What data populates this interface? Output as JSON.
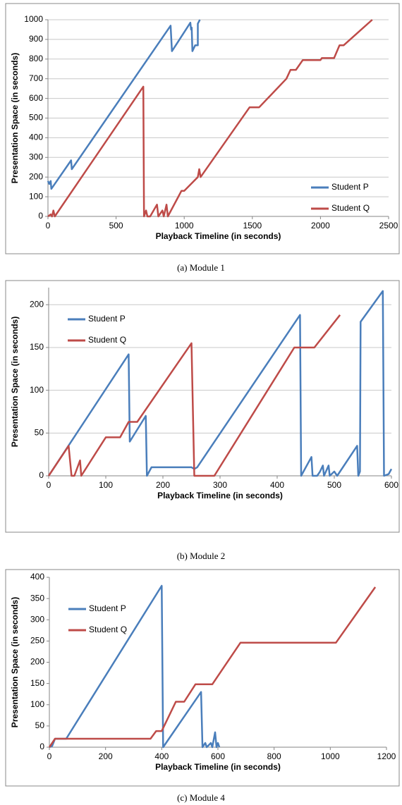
{
  "chart_data": [
    {
      "type": "line",
      "caption": "(a)  Module 1",
      "x_label": "Playback Timeline (in seconds)",
      "y_label": "Presentation Space (in seconds)",
      "xlim": [
        0,
        2500
      ],
      "xticks": [
        0,
        500,
        1000,
        1500,
        2000,
        2500
      ],
      "ylim": [
        0,
        1000
      ],
      "yticks": [
        0,
        100,
        200,
        300,
        400,
        500,
        600,
        700,
        800,
        900,
        1000
      ],
      "grid": true,
      "legend": "lower right",
      "series": [
        {
          "name": "Student P",
          "color": "#4a7ebb",
          "x": [
            0,
            10,
            20,
            25,
            170,
            175,
            900,
            910,
            1045,
            1050,
            1055,
            1060,
            1080,
            1100,
            1100,
            1115
          ],
          "values": [
            180,
            165,
            180,
            140,
            285,
            240,
            970,
            840,
            985,
            950,
            960,
            840,
            870,
            870,
            980,
            1000
          ]
        },
        {
          "name": "Student Q",
          "color": "#be4b48",
          "x": [
            0,
            20,
            30,
            40,
            50,
            700,
            705,
            720,
            730,
            750,
            800,
            810,
            840,
            850,
            870,
            880,
            980,
            1000,
            1100,
            1110,
            1120,
            1480,
            1550,
            1750,
            1780,
            1820,
            1870,
            2000,
            2010,
            2100,
            2140,
            2170,
            2380
          ],
          "values": [
            0,
            10,
            0,
            30,
            0,
            660,
            0,
            30,
            0,
            0,
            60,
            0,
            30,
            0,
            60,
            0,
            130,
            130,
            200,
            240,
            200,
            555,
            555,
            700,
            745,
            745,
            795,
            795,
            805,
            805,
            870,
            870,
            1000
          ]
        }
      ]
    },
    {
      "type": "line",
      "caption": "(b)  Module 2",
      "x_label": "Playback Timeline (in seconds)",
      "y_label": "Presentation Space (in seconds)",
      "xlim": [
        0,
        600
      ],
      "xticks": [
        0,
        100,
        200,
        300,
        400,
        500,
        600
      ],
      "ylim": [
        0,
        220
      ],
      "yticks": [
        0,
        50,
        100,
        150,
        200
      ],
      "grid": true,
      "legend": "upper left",
      "series": [
        {
          "name": "Student P",
          "color": "#4a7ebb",
          "x": [
            0,
            140,
            142,
            170,
            172,
            180,
            250,
            255,
            260,
            440,
            442,
            460,
            462,
            470,
            475,
            480,
            482,
            490,
            492,
            500,
            505,
            540,
            542,
            545,
            546,
            585,
            587,
            595,
            600
          ],
          "values": [
            0,
            142,
            40,
            70,
            0,
            10,
            10,
            8,
            10,
            188,
            0,
            22,
            0,
            0,
            5,
            12,
            0,
            12,
            0,
            5,
            0,
            35,
            0,
            5,
            180,
            216,
            0,
            2,
            8
          ]
        },
        {
          "name": "Student Q",
          "color": "#be4b48",
          "x": [
            0,
            35,
            40,
            45,
            55,
            57,
            100,
            125,
            140,
            155,
            250,
            255,
            290,
            430,
            465,
            510
          ],
          "values": [
            0,
            35,
            0,
            0,
            18,
            0,
            45,
            45,
            63,
            63,
            155,
            0,
            0,
            150,
            150,
            188
          ]
        }
      ]
    },
    {
      "type": "line",
      "caption": "(c)  Module 4",
      "x_label": "Playback Timeline (in seconds)",
      "y_label": "Presentation Space (in seconds)",
      "xlim": [
        0,
        1200
      ],
      "xticks": [
        0,
        200,
        400,
        600,
        800,
        1000,
        1200
      ],
      "ylim": [
        0,
        400
      ],
      "yticks": [
        0,
        50,
        100,
        150,
        200,
        250,
        300,
        350,
        400
      ],
      "grid": false,
      "legend": "upper left",
      "series": [
        {
          "name": "Student P",
          "color": "#4a7ebb",
          "x": [
            0,
            10,
            20,
            60,
            400,
            405,
            540,
            545,
            555,
            560,
            575,
            580,
            590,
            595,
            600,
            605
          ],
          "values": [
            0,
            3,
            20,
            20,
            380,
            0,
            130,
            0,
            10,
            0,
            10,
            0,
            35,
            0,
            10,
            0
          ]
        },
        {
          "name": "Student Q",
          "color": "#be4b48",
          "x": [
            0,
            20,
            360,
            380,
            400,
            450,
            480,
            520,
            580,
            680,
            1020,
            1160
          ],
          "values": [
            0,
            20,
            20,
            38,
            38,
            107,
            107,
            148,
            148,
            246,
            246,
            377
          ]
        }
      ]
    }
  ]
}
